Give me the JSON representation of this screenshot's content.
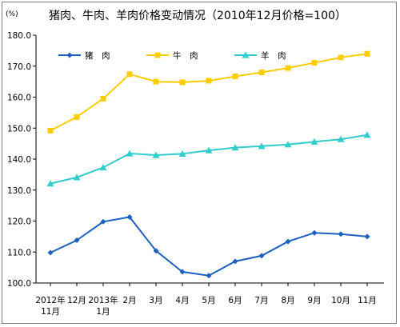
{
  "chart_data": {
    "type": "line",
    "title": "猪肉、牛肉、羊肉价格变动情况（2010年12月价格=100）",
    "unit": "(%)",
    "ylim": [
      100,
      180
    ],
    "yticks": [
      "100.0",
      "110.0",
      "120.0",
      "130.0",
      "140.0",
      "150.0",
      "160.0",
      "170.0",
      "180.0"
    ],
    "categories": [
      [
        "2012年",
        "11月"
      ],
      [
        "12月"
      ],
      [
        "2013年",
        "1月"
      ],
      [
        "2月"
      ],
      [
        "3月"
      ],
      [
        "4月"
      ],
      [
        "5月"
      ],
      [
        "6月"
      ],
      [
        "7月"
      ],
      [
        "8月"
      ],
      [
        "9月"
      ],
      [
        "10月"
      ],
      [
        "11月"
      ]
    ],
    "grid": false,
    "legend_position": "top",
    "series": [
      {
        "name": "猪　肉",
        "color": "#1f5fbf",
        "marker": "diamond",
        "values": [
          109.8,
          113.8,
          119.8,
          121.3,
          110.4,
          103.6,
          102.4,
          107.0,
          108.8,
          113.4,
          116.2,
          115.8,
          115.0
        ]
      },
      {
        "name": "牛　肉",
        "color": "#ffcc00",
        "marker": "square",
        "values": [
          149.2,
          153.6,
          159.5,
          167.4,
          165.0,
          164.8,
          165.3,
          166.7,
          168.0,
          169.4,
          171.1,
          172.8,
          174.0
        ]
      },
      {
        "name": "羊　肉",
        "color": "#33cccc",
        "marker": "triangle",
        "values": [
          132.1,
          134.1,
          137.3,
          141.8,
          141.3,
          141.7,
          142.8,
          143.7,
          144.2,
          144.7,
          145.6,
          146.4,
          147.8
        ]
      }
    ]
  }
}
